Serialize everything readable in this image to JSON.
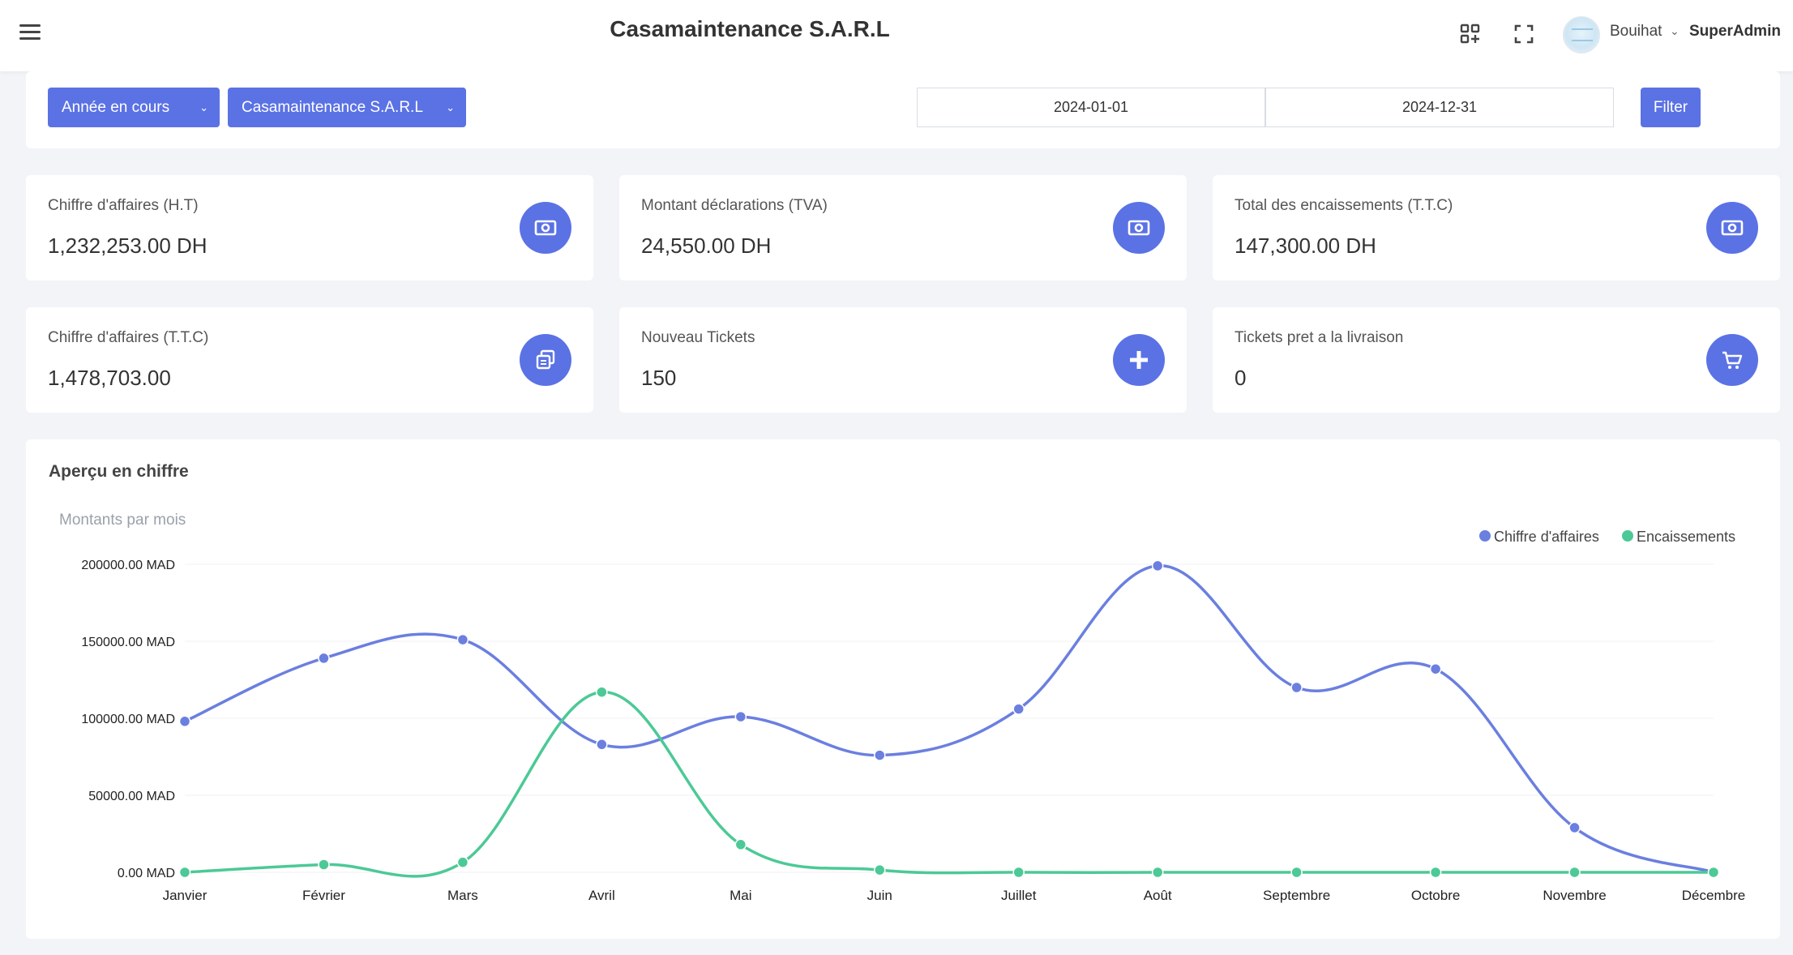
{
  "header": {
    "title": "Casamaintenance S.A.R.L",
    "user_name": "Bouihat",
    "user_role": "SuperAdmin"
  },
  "filters": {
    "period_label": "Année en cours",
    "company_label": "Casamaintenance S.A.R.L",
    "date_from": "2024-01-01",
    "date_to": "2024-12-31",
    "filter_label": "Filter"
  },
  "stats": [
    {
      "label": "Chiffre d'affaires (H.T)",
      "value": "1,232,253.00 DH",
      "icon": "money-icon"
    },
    {
      "label": "Montant déclarations (TVA)",
      "value": "24,550.00 DH",
      "icon": "money-icon"
    },
    {
      "label": "Total des encaissements (T.T.C)",
      "value": "147,300.00 DH",
      "icon": "money-icon"
    },
    {
      "label": "Chiffre d'affaires (T.T.C)",
      "value": "1,478,703.00",
      "icon": "copy-icon"
    },
    {
      "label": "Nouveau Tickets",
      "value": "150",
      "icon": "plus-icon"
    },
    {
      "label": "Tickets pret a la livraison",
      "value": "0",
      "icon": "cart-icon"
    }
  ],
  "colors": {
    "accent": "#5b72e5",
    "series_ca": "#6b7fe0",
    "series_enc": "#4cc996"
  },
  "chart_section": {
    "heading": "Aperçu en chiffre"
  },
  "chart_data": {
    "type": "line",
    "title": "Montants par mois",
    "categories": [
      "Janvier",
      "Février",
      "Mars",
      "Avril",
      "Mai",
      "Juin",
      "Juillet",
      "Août",
      "Septembre",
      "Octobre",
      "Novembre",
      "Décembre"
    ],
    "series": [
      {
        "name": "Chiffre d'affaires",
        "values": [
          98000,
          139000,
          151000,
          83000,
          101000,
          76000,
          106000,
          199000,
          120000,
          132000,
          29000,
          0
        ]
      },
      {
        "name": "Encaissements",
        "values": [
          0,
          5000,
          6500,
          117000,
          18000,
          1500,
          0,
          0,
          0,
          0,
          0,
          0
        ]
      }
    ],
    "ylim": [
      0,
      200000
    ],
    "y_ticks": [
      "0.00 MAD",
      "50000.00 MAD",
      "100000.00 MAD",
      "150000.00 MAD",
      "200000.00 MAD"
    ],
    "legend_position": "top-right",
    "grid": true
  }
}
